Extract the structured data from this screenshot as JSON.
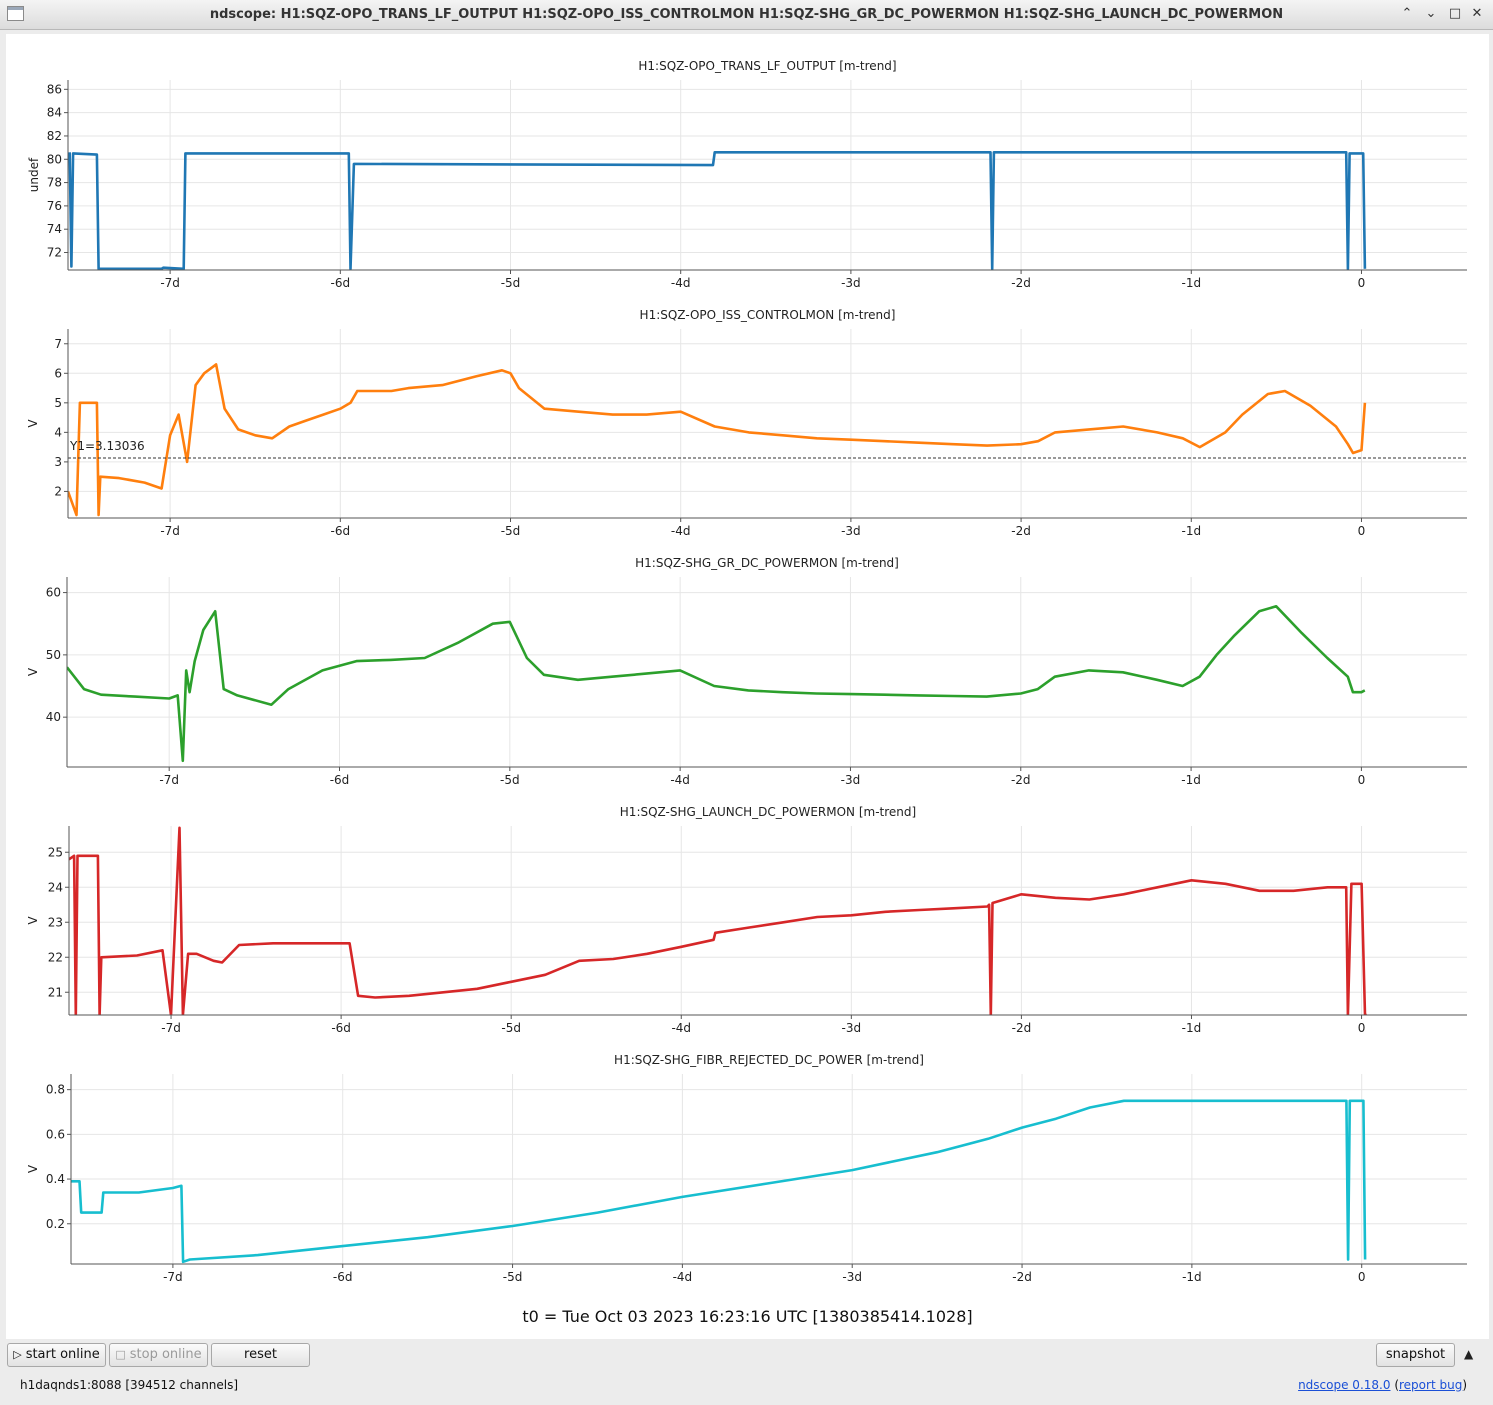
{
  "window": {
    "title": "ndscope: H1:SQZ-OPO_TRANS_LF_OUTPUT H1:SQZ-OPO_ISS_CONTROLMON H1:SQZ-SHG_GR_DC_POWERMON H1:SQZ-SHG_LAUNCH_DC_POWERMON",
    "buttons": {
      "collapse": "⌃",
      "expand": "⌄",
      "maximize": "□",
      "close": "✕"
    }
  },
  "t0_label": "t0 = Tue Oct 03 2023 16:23:16 UTC [1380385414.1028]",
  "toolbar": {
    "start_online": "start online",
    "stop_online": "stop online",
    "reset": "reset",
    "snapshot": "snapshot",
    "collapse_arrow": "▲"
  },
  "status": {
    "server": "h1daqnds1:8088  [394512 channels]",
    "version_link": "ndscope 0.18.0",
    "report_prefix": "(",
    "report_link": "report bug",
    "report_suffix": ")"
  },
  "chart_data": [
    {
      "type": "line",
      "title": "H1:SQZ-OPO_TRANS_LF_OUTPUT [m-trend]",
      "ylabel": "undef",
      "color": "#1f77b4",
      "xlim": [
        -7.6,
        0.62
      ],
      "ylim": [
        70.5,
        86.8
      ],
      "yticks": [
        72,
        74,
        76,
        78,
        80,
        82,
        84,
        86
      ],
      "xticks": [
        -7,
        -6,
        -5,
        -4,
        -3,
        -2,
        -1,
        0
      ],
      "xtick_labels": [
        "-7d",
        "-6d",
        "-5d",
        "-4d",
        "-3d",
        "-2d",
        "-1d",
        "0"
      ],
      "grid": true,
      "x": [
        -7.59,
        -7.58,
        -7.57,
        -7.43,
        -7.42,
        -7.05,
        -7.04,
        -6.92,
        -6.91,
        -5.95,
        -5.94,
        -5.92,
        -5.91,
        -3.81,
        -3.8,
        -2.18,
        -2.17,
        -2.16,
        -0.09,
        -0.08,
        -0.07,
        0.01,
        0.02
      ],
      "values": [
        80.6,
        70.8,
        80.5,
        80.4,
        70.6,
        70.6,
        70.7,
        70.6,
        80.5,
        80.5,
        70.6,
        79.6,
        79.6,
        79.5,
        80.6,
        80.6,
        70.6,
        80.6,
        80.6,
        70.6,
        80.5,
        80.5,
        70.6
      ]
    },
    {
      "type": "line",
      "title": "H1:SQZ-OPO_ISS_CONTROLMON [m-trend]",
      "ylabel": "V",
      "color": "#ff7f0e",
      "xlim": [
        -7.6,
        0.62
      ],
      "ylim": [
        1.1,
        7.5
      ],
      "yticks": [
        2,
        3,
        4,
        5,
        6,
        7
      ],
      "xticks": [
        -7,
        -6,
        -5,
        -4,
        -3,
        -2,
        -1,
        0
      ],
      "xtick_labels": [
        "-7d",
        "-6d",
        "-5d",
        "-4d",
        "-3d",
        "-2d",
        "-1d",
        "0"
      ],
      "grid": true,
      "cursor": {
        "label": "Y1=3.13036",
        "y": 3.13036
      },
      "x": [
        -7.6,
        -7.55,
        -7.53,
        -7.52,
        -7.43,
        -7.42,
        -7.41,
        -7.3,
        -7.15,
        -7.05,
        -7.0,
        -6.95,
        -6.9,
        -6.85,
        -6.8,
        -6.73,
        -6.68,
        -6.6,
        -6.5,
        -6.4,
        -6.3,
        -6.2,
        -6.1,
        -6.0,
        -5.94,
        -5.9,
        -5.8,
        -5.7,
        -5.6,
        -5.4,
        -5.2,
        -5.05,
        -5.0,
        -4.95,
        -4.8,
        -4.6,
        -4.4,
        -4.2,
        -4.0,
        -3.8,
        -3.6,
        -3.4,
        -3.2,
        -3.0,
        -2.8,
        -2.6,
        -2.4,
        -2.2,
        -2.0,
        -1.9,
        -1.8,
        -1.6,
        -1.4,
        -1.2,
        -1.05,
        -0.95,
        -0.8,
        -0.7,
        -0.55,
        -0.45,
        -0.3,
        -0.15,
        -0.08,
        -0.05,
        0.0,
        0.02
      ],
      "values": [
        2.0,
        1.2,
        5.0,
        5.0,
        5.0,
        1.2,
        2.5,
        2.45,
        2.3,
        2.1,
        3.9,
        4.6,
        3.0,
        5.6,
        6.0,
        6.3,
        4.8,
        4.1,
        3.9,
        3.8,
        4.2,
        4.4,
        4.6,
        4.8,
        5.0,
        5.4,
        5.4,
        5.4,
        5.5,
        5.6,
        5.9,
        6.1,
        6.0,
        5.5,
        4.8,
        4.7,
        4.6,
        4.6,
        4.7,
        4.2,
        4.0,
        3.9,
        3.8,
        3.75,
        3.7,
        3.65,
        3.6,
        3.55,
        3.6,
        3.7,
        4.0,
        4.1,
        4.2,
        4.0,
        3.8,
        3.5,
        4.0,
        4.6,
        5.3,
        5.4,
        4.9,
        4.2,
        3.6,
        3.3,
        3.4,
        5.0
      ]
    },
    {
      "type": "line",
      "title": "H1:SQZ-SHG_GR_DC_POWERMON [m-trend]",
      "ylabel": "V",
      "color": "#2ca02c",
      "xlim": [
        -7.6,
        0.62
      ],
      "ylim": [
        32,
        62.5
      ],
      "yticks": [
        40,
        50,
        60
      ],
      "xticks": [
        -7,
        -6,
        -5,
        -4,
        -3,
        -2,
        -1,
        0
      ],
      "xtick_labels": [
        "-7d",
        "-6d",
        "-5d",
        "-4d",
        "-3d",
        "-2d",
        "-1d",
        "0"
      ],
      "grid": true,
      "x": [
        -7.6,
        -7.5,
        -7.4,
        -7.2,
        -7.0,
        -6.95,
        -6.92,
        -6.9,
        -6.88,
        -6.85,
        -6.8,
        -6.73,
        -6.68,
        -6.6,
        -6.4,
        -6.3,
        -6.1,
        -5.9,
        -5.7,
        -5.5,
        -5.3,
        -5.1,
        -5.0,
        -4.9,
        -4.8,
        -4.6,
        -4.4,
        -4.2,
        -4.0,
        -3.8,
        -3.6,
        -3.4,
        -3.2,
        -3.0,
        -2.8,
        -2.6,
        -2.4,
        -2.2,
        -2.0,
        -1.9,
        -1.8,
        -1.6,
        -1.4,
        -1.2,
        -1.05,
        -0.95,
        -0.85,
        -0.75,
        -0.6,
        -0.5,
        -0.35,
        -0.2,
        -0.08,
        -0.05,
        0.0,
        0.02
      ],
      "values": [
        48,
        44.5,
        43.6,
        43.3,
        43.0,
        43.5,
        33,
        47.5,
        44,
        49,
        54,
        57,
        44.5,
        43.5,
        42.0,
        44.5,
        47.5,
        49.0,
        49.2,
        49.5,
        52.0,
        55.0,
        55.3,
        49.5,
        46.8,
        46.0,
        46.5,
        47.0,
        47.5,
        45.0,
        44.3,
        44.0,
        43.8,
        43.7,
        43.6,
        43.5,
        43.4,
        43.3,
        43.8,
        44.5,
        46.5,
        47.5,
        47.2,
        46.0,
        45.0,
        46.5,
        50.0,
        53.0,
        57.0,
        57.8,
        53.5,
        49.5,
        46.5,
        44.0,
        44.0,
        44.3
      ]
    },
    {
      "type": "line",
      "title": "H1:SQZ-SHG_LAUNCH_DC_POWERMON [m-trend]",
      "ylabel": "V",
      "color": "#d62728",
      "xlim": [
        -7.6,
        0.62
      ],
      "ylim": [
        20.35,
        25.75
      ],
      "yticks": [
        21,
        22,
        23,
        24,
        25
      ],
      "xticks": [
        -7,
        -6,
        -5,
        -4,
        -3,
        -2,
        -1,
        0
      ],
      "xtick_labels": [
        "-7d",
        "-6d",
        "-5d",
        "-4d",
        "-3d",
        "-2d",
        "-1d",
        "0"
      ],
      "grid": true,
      "x": [
        -7.6,
        -7.57,
        -7.56,
        -7.55,
        -7.43,
        -7.42,
        -7.41,
        -7.2,
        -7.05,
        -7.0,
        -6.95,
        -6.93,
        -6.9,
        -6.85,
        -6.75,
        -6.7,
        -6.6,
        -6.4,
        -6.2,
        -6.0,
        -5.95,
        -5.9,
        -5.8,
        -5.6,
        -5.4,
        -5.2,
        -5.0,
        -4.8,
        -4.6,
        -4.4,
        -4.2,
        -4.0,
        -3.81,
        -3.8,
        -3.6,
        -3.4,
        -3.2,
        -3.0,
        -2.8,
        -2.6,
        -2.4,
        -2.2,
        -2.19,
        -2.18,
        -2.17,
        -2.0,
        -1.8,
        -1.6,
        -1.4,
        -1.2,
        -1.0,
        -0.8,
        -0.6,
        -0.4,
        -0.2,
        -0.1,
        -0.09,
        -0.08,
        -0.06,
        0.0,
        0.02,
        0.03
      ],
      "values": [
        24.8,
        24.9,
        20.35,
        24.9,
        24.9,
        20.35,
        22.0,
        22.05,
        22.2,
        20.35,
        25.7,
        20.35,
        22.1,
        22.1,
        21.9,
        21.85,
        22.35,
        22.4,
        22.4,
        22.4,
        22.4,
        20.9,
        20.85,
        20.9,
        21.0,
        21.1,
        21.3,
        21.5,
        21.9,
        21.95,
        22.1,
        22.3,
        22.5,
        22.7,
        22.85,
        23.0,
        23.15,
        23.2,
        23.3,
        23.35,
        23.4,
        23.45,
        23.5,
        20.35,
        23.55,
        23.8,
        23.7,
        23.65,
        23.8,
        24.0,
        24.2,
        24.1,
        23.9,
        23.9,
        24.0,
        24.0,
        24.0,
        20.35,
        24.1,
        24.1,
        20.35,
        20.35
      ]
    },
    {
      "type": "line",
      "title": "H1:SQZ-SHG_FIBR_REJECTED_DC_POWER [m-trend]",
      "ylabel": "V",
      "color": "#17becf",
      "xlim": [
        -7.6,
        0.62
      ],
      "ylim": [
        0.02,
        0.87
      ],
      "yticks": [
        0.2,
        0.4,
        0.6,
        0.8
      ],
      "xticks": [
        -7,
        -6,
        -5,
        -4,
        -3,
        -2,
        -1,
        0
      ],
      "xtick_labels": [
        "-7d",
        "-6d",
        "-5d",
        "-4d",
        "-3d",
        "-2d",
        "-1d",
        "0"
      ],
      "grid": true,
      "x": [
        -7.6,
        -7.55,
        -7.54,
        -7.42,
        -7.41,
        -7.2,
        -7.0,
        -6.95,
        -6.94,
        -6.9,
        -6.5,
        -6.0,
        -5.5,
        -5.0,
        -4.5,
        -4.0,
        -3.5,
        -3.0,
        -2.5,
        -2.2,
        -2.0,
        -1.8,
        -1.6,
        -1.4,
        -1.0,
        -0.5,
        -0.1,
        -0.09,
        -0.08,
        -0.07,
        0.0,
        0.01,
        0.02
      ],
      "values": [
        0.39,
        0.39,
        0.25,
        0.25,
        0.34,
        0.34,
        0.36,
        0.37,
        0.03,
        0.04,
        0.06,
        0.1,
        0.14,
        0.19,
        0.25,
        0.32,
        0.38,
        0.44,
        0.52,
        0.58,
        0.63,
        0.67,
        0.72,
        0.75,
        0.75,
        0.75,
        0.75,
        0.75,
        0.04,
        0.75,
        0.75,
        0.75,
        0.04
      ]
    }
  ]
}
